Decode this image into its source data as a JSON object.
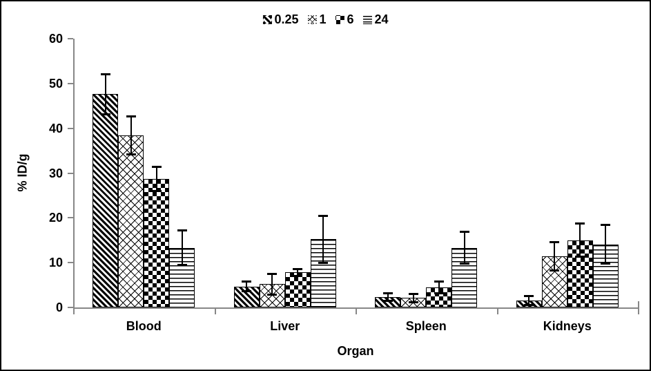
{
  "chart_data": {
    "type": "bar",
    "title": "",
    "xlabel": "Organ",
    "ylabel": "% ID/g",
    "ylim": [
      0,
      60
    ],
    "yticks": [
      0,
      10,
      20,
      30,
      40,
      50,
      60
    ],
    "grid": false,
    "legend_position": "top-center",
    "categories": [
      "Blood",
      "Liver",
      "Spleen",
      "Kidneys"
    ],
    "series": [
      {
        "name": "0.25",
        "pattern": "diagonal-stripes",
        "values": [
          47.6,
          4.7,
          2.3,
          1.5
        ],
        "errors": [
          4.5,
          1.1,
          0.9,
          1.1
        ]
      },
      {
        "name": "1",
        "pattern": "diagonal-lattice",
        "values": [
          38.4,
          5.2,
          2.1,
          11.4
        ],
        "errors": [
          4.3,
          2.4,
          1.0,
          3.2
        ]
      },
      {
        "name": "6",
        "pattern": "checkerboard",
        "values": [
          28.7,
          7.8,
          4.5,
          15.0
        ],
        "errors": [
          2.8,
          0.9,
          1.4,
          3.8
        ]
      },
      {
        "name": "24",
        "pattern": "horizontal-lines",
        "values": [
          13.3,
          15.2,
          13.3,
          14.1
        ],
        "errors": [
          3.9,
          5.3,
          3.6,
          4.4
        ]
      }
    ],
    "colors": {
      "bar_fill": "#ffffff",
      "bar_pattern": "#000000",
      "axis_line": "#878787",
      "text": "#000000",
      "background": "#ffffff",
      "frame_border": "#000000"
    }
  }
}
